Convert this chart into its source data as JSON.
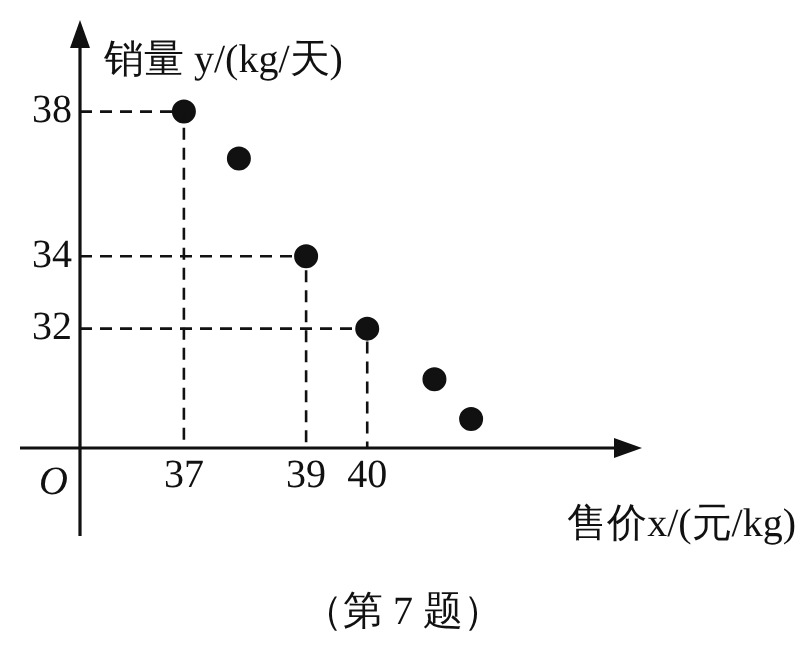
{
  "chart_data": {
    "type": "scatter",
    "xlabel": "售价x/(元/kg)",
    "ylabel": "销量 y/(kg/天)",
    "series": [
      {
        "color": "#111111",
        "marker": "circle",
        "x": [
          37,
          37.9,
          39,
          40,
          41.1,
          41.7
        ],
        "values": [
          38,
          36.7,
          34,
          32,
          30.6,
          29.5
        ]
      },
      {
        "type": "line",
        "color": "#111111",
        "marker": "none",
        "line_style": "dashed",
        "x": [
          35.3,
          37,
          37
        ],
        "values": [
          38,
          38,
          28.7
        ]
      },
      {
        "type": "line",
        "color": "#111111",
        "marker": "none",
        "line_style": "dashed",
        "x": [
          35.3,
          39,
          39
        ],
        "values": [
          34,
          34,
          28.7
        ]
      },
      {
        "type": "line",
        "color": "#111111",
        "marker": "none",
        "line_style": "dashed",
        "x": [
          35.3,
          40,
          40
        ],
        "values": [
          32,
          32,
          28.7
        ]
      }
    ],
    "grid": false,
    "legend": false,
    "xlim": [
      35.3,
      44.3
    ],
    "ylim": [
      28.7,
      40.2
    ],
    "xticks": [
      37,
      39,
      40
    ],
    "yticks": [
      32,
      34,
      38
    ],
    "annotations": [
      "O",
      "（第 7 题）"
    ]
  }
}
